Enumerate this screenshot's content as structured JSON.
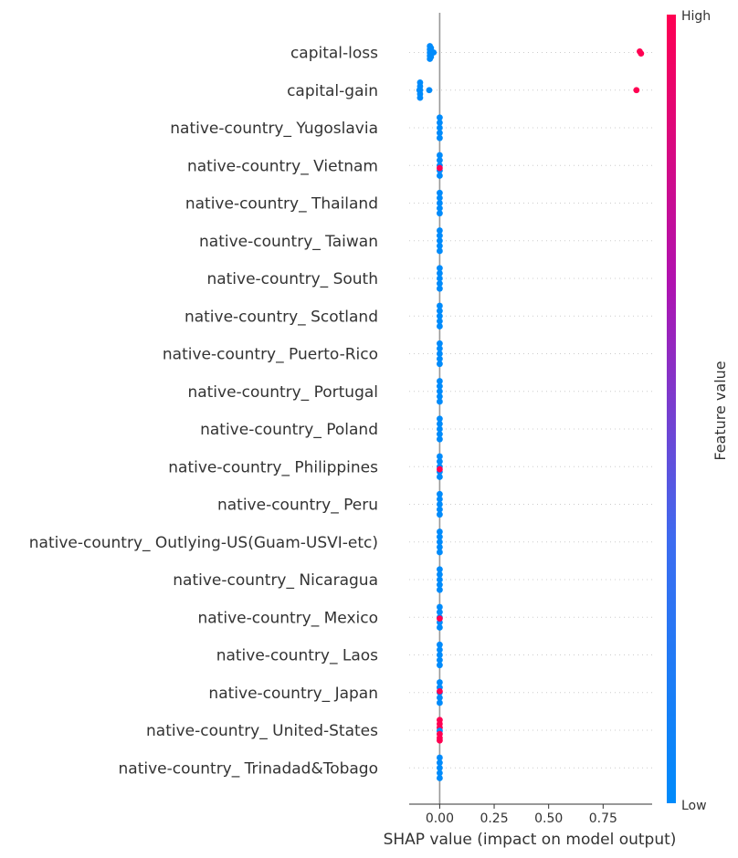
{
  "chart_data": {
    "type": "scatter",
    "subtype": "shap-beeswarm",
    "xlabel": "SHAP value (impact on model output)",
    "ylabel": "",
    "xlim": [
      -0.14,
      0.975
    ],
    "xticks": [
      0.0,
      0.25,
      0.5,
      0.75
    ],
    "xtick_labels": [
      "0.00",
      "0.25",
      "0.50",
      "0.75"
    ],
    "colorbar": {
      "label": "Feature value",
      "high_label": "High",
      "low_label": "Low",
      "low_color": "#008bfb",
      "high_color": "#ff0052"
    },
    "features": [
      {
        "name": "capital-loss",
        "points": [
          {
            "x": -0.045,
            "value": 0.0,
            "dy": -0.5
          },
          {
            "x": -0.045,
            "value": 0.0,
            "dy": -0.25
          },
          {
            "x": -0.045,
            "value": 0.0,
            "dy": 0.0
          },
          {
            "x": -0.045,
            "value": 0.0,
            "dy": 0.25
          },
          {
            "x": -0.045,
            "value": 0.0,
            "dy": 0.5
          },
          {
            "x": -0.04,
            "value": 0.0,
            "dy": -0.35
          },
          {
            "x": -0.04,
            "value": 0.0,
            "dy": 0.35
          },
          {
            "x": -0.028,
            "value": 0.0,
            "dy": 0.0
          },
          {
            "x": 0.918,
            "value": 1.0,
            "dy": -0.08
          },
          {
            "x": 0.924,
            "value": 1.0,
            "dy": 0.08
          }
        ]
      },
      {
        "name": "capital-gain",
        "points": [
          {
            "x": -0.09,
            "value": 0.0,
            "dy": -0.6
          },
          {
            "x": -0.09,
            "value": 0.0,
            "dy": -0.3
          },
          {
            "x": -0.09,
            "value": 0.0,
            "dy": 0.0
          },
          {
            "x": -0.09,
            "value": 0.0,
            "dy": 0.3
          },
          {
            "x": -0.09,
            "value": 0.0,
            "dy": 0.6
          },
          {
            "x": -0.093,
            "value": 0.0,
            "dy": 0.0
          },
          {
            "x": -0.048,
            "value": 0.0,
            "dy": 0.0
          },
          {
            "x": 0.903,
            "value": 1.0,
            "dy": 0.0
          }
        ]
      },
      {
        "name": "native-country_ Yugoslavia",
        "points": [
          {
            "x": 0.0,
            "value": 0.0,
            "dy": -0.8
          },
          {
            "x": 0.0,
            "value": 0.0,
            "dy": -0.4
          },
          {
            "x": 0.0,
            "value": 0.0,
            "dy": 0.0
          },
          {
            "x": 0.0,
            "value": 0.0,
            "dy": 0.4
          },
          {
            "x": 0.0,
            "value": 0.0,
            "dy": 0.8
          }
        ]
      },
      {
        "name": "native-country_ Vietnam",
        "points": [
          {
            "x": 0.0,
            "value": 0.0,
            "dy": -0.8
          },
          {
            "x": 0.0,
            "value": 0.0,
            "dy": -0.4
          },
          {
            "x": 0.0,
            "value": 0.0,
            "dy": 0.0
          },
          {
            "x": 0.0,
            "value": 0.0,
            "dy": 0.4
          },
          {
            "x": 0.0,
            "value": 0.0,
            "dy": 0.8
          },
          {
            "x": 0.0,
            "value": 1.0,
            "dy": 0.2
          }
        ]
      },
      {
        "name": "native-country_ Thailand",
        "points": [
          {
            "x": 0.0,
            "value": 0.0,
            "dy": -0.8
          },
          {
            "x": 0.0,
            "value": 0.0,
            "dy": -0.4
          },
          {
            "x": 0.0,
            "value": 0.0,
            "dy": 0.0
          },
          {
            "x": 0.0,
            "value": 0.0,
            "dy": 0.4
          },
          {
            "x": 0.0,
            "value": 0.0,
            "dy": 0.8
          }
        ]
      },
      {
        "name": "native-country_ Taiwan",
        "points": [
          {
            "x": 0.0,
            "value": 0.0,
            "dy": -0.8
          },
          {
            "x": 0.0,
            "value": 0.0,
            "dy": -0.4
          },
          {
            "x": 0.0,
            "value": 0.0,
            "dy": 0.0
          },
          {
            "x": 0.0,
            "value": 0.0,
            "dy": 0.4
          },
          {
            "x": 0.0,
            "value": 0.0,
            "dy": 0.8
          }
        ]
      },
      {
        "name": "native-country_ South",
        "points": [
          {
            "x": 0.0,
            "value": 0.0,
            "dy": -0.8
          },
          {
            "x": 0.0,
            "value": 0.0,
            "dy": -0.4
          },
          {
            "x": 0.0,
            "value": 0.0,
            "dy": 0.0
          },
          {
            "x": 0.0,
            "value": 0.0,
            "dy": 0.4
          },
          {
            "x": 0.0,
            "value": 0.0,
            "dy": 0.8
          }
        ]
      },
      {
        "name": "native-country_ Scotland",
        "points": [
          {
            "x": 0.0,
            "value": 0.0,
            "dy": -0.8
          },
          {
            "x": 0.0,
            "value": 0.0,
            "dy": -0.4
          },
          {
            "x": 0.0,
            "value": 0.0,
            "dy": 0.0
          },
          {
            "x": 0.0,
            "value": 0.0,
            "dy": 0.4
          },
          {
            "x": 0.0,
            "value": 0.0,
            "dy": 0.8
          }
        ]
      },
      {
        "name": "native-country_ Puerto-Rico",
        "points": [
          {
            "x": 0.0,
            "value": 0.0,
            "dy": -0.8
          },
          {
            "x": 0.0,
            "value": 0.0,
            "dy": -0.4
          },
          {
            "x": 0.0,
            "value": 0.0,
            "dy": 0.0
          },
          {
            "x": 0.0,
            "value": 0.0,
            "dy": 0.4
          },
          {
            "x": 0.0,
            "value": 0.0,
            "dy": 0.8
          }
        ]
      },
      {
        "name": "native-country_ Portugal",
        "points": [
          {
            "x": 0.0,
            "value": 0.0,
            "dy": -0.8
          },
          {
            "x": 0.0,
            "value": 0.0,
            "dy": -0.4
          },
          {
            "x": 0.0,
            "value": 0.0,
            "dy": 0.0
          },
          {
            "x": 0.0,
            "value": 0.0,
            "dy": 0.4
          },
          {
            "x": 0.0,
            "value": 0.0,
            "dy": 0.8
          }
        ]
      },
      {
        "name": "native-country_ Poland",
        "points": [
          {
            "x": 0.0,
            "value": 0.0,
            "dy": -0.8
          },
          {
            "x": 0.0,
            "value": 0.0,
            "dy": -0.4
          },
          {
            "x": 0.0,
            "value": 0.0,
            "dy": 0.0
          },
          {
            "x": 0.0,
            "value": 0.0,
            "dy": 0.4
          },
          {
            "x": 0.0,
            "value": 0.0,
            "dy": 0.8
          }
        ]
      },
      {
        "name": "native-country_ Philippines",
        "points": [
          {
            "x": 0.0,
            "value": 0.0,
            "dy": -0.8
          },
          {
            "x": 0.0,
            "value": 0.0,
            "dy": -0.4
          },
          {
            "x": 0.0,
            "value": 0.0,
            "dy": 0.0
          },
          {
            "x": 0.0,
            "value": 0.0,
            "dy": 0.4
          },
          {
            "x": 0.0,
            "value": 0.0,
            "dy": 0.8
          },
          {
            "x": 0.0,
            "value": 1.0,
            "dy": 0.2
          }
        ]
      },
      {
        "name": "native-country_ Peru",
        "points": [
          {
            "x": 0.0,
            "value": 0.0,
            "dy": -0.8
          },
          {
            "x": 0.0,
            "value": 0.0,
            "dy": -0.4
          },
          {
            "x": 0.0,
            "value": 0.0,
            "dy": 0.0
          },
          {
            "x": 0.0,
            "value": 0.0,
            "dy": 0.4
          },
          {
            "x": 0.0,
            "value": 0.0,
            "dy": 0.8
          }
        ]
      },
      {
        "name": "native-country_ Outlying-US(Guam-USVI-etc)",
        "points": [
          {
            "x": 0.0,
            "value": 0.0,
            "dy": -0.8
          },
          {
            "x": 0.0,
            "value": 0.0,
            "dy": -0.4
          },
          {
            "x": 0.0,
            "value": 0.0,
            "dy": 0.0
          },
          {
            "x": 0.0,
            "value": 0.0,
            "dy": 0.4
          },
          {
            "x": 0.0,
            "value": 0.0,
            "dy": 0.8
          }
        ]
      },
      {
        "name": "native-country_ Nicaragua",
        "points": [
          {
            "x": 0.0,
            "value": 0.0,
            "dy": -0.8
          },
          {
            "x": 0.0,
            "value": 0.0,
            "dy": -0.4
          },
          {
            "x": 0.0,
            "value": 0.0,
            "dy": 0.0
          },
          {
            "x": 0.0,
            "value": 0.0,
            "dy": 0.4
          },
          {
            "x": 0.0,
            "value": 0.0,
            "dy": 0.8
          }
        ]
      },
      {
        "name": "native-country_ Mexico",
        "points": [
          {
            "x": 0.0,
            "value": 0.0,
            "dy": -0.8
          },
          {
            "x": 0.0,
            "value": 0.0,
            "dy": -0.4
          },
          {
            "x": 0.0,
            "value": 0.0,
            "dy": 0.0
          },
          {
            "x": 0.0,
            "value": 0.0,
            "dy": 0.4
          },
          {
            "x": 0.0,
            "value": 0.0,
            "dy": 0.8
          },
          {
            "x": 0.0,
            "value": 1.0,
            "dy": 0.1
          }
        ]
      },
      {
        "name": "native-country_ Laos",
        "points": [
          {
            "x": 0.0,
            "value": 0.0,
            "dy": -0.8
          },
          {
            "x": 0.0,
            "value": 0.0,
            "dy": -0.4
          },
          {
            "x": 0.0,
            "value": 0.0,
            "dy": 0.0
          },
          {
            "x": 0.0,
            "value": 0.0,
            "dy": 0.4
          },
          {
            "x": 0.0,
            "value": 0.0,
            "dy": 0.8
          }
        ]
      },
      {
        "name": "native-country_ Japan",
        "points": [
          {
            "x": 0.0,
            "value": 0.0,
            "dy": -0.8
          },
          {
            "x": 0.0,
            "value": 0.0,
            "dy": -0.4
          },
          {
            "x": 0.0,
            "value": 0.0,
            "dy": 0.0
          },
          {
            "x": 0.0,
            "value": 0.0,
            "dy": 0.4
          },
          {
            "x": 0.0,
            "value": 0.0,
            "dy": 0.8
          },
          {
            "x": 0.0,
            "value": 1.0,
            "dy": -0.1
          }
        ]
      },
      {
        "name": "native-country_ United-States",
        "points": [
          {
            "x": 0.0,
            "value": 1.0,
            "dy": -0.8
          },
          {
            "x": 0.0,
            "value": 1.0,
            "dy": -0.5
          },
          {
            "x": 0.0,
            "value": 1.0,
            "dy": -0.2
          },
          {
            "x": 0.0,
            "value": 0.0,
            "dy": 0.05
          },
          {
            "x": 0.0,
            "value": 1.0,
            "dy": 0.3
          },
          {
            "x": 0.0,
            "value": 1.0,
            "dy": 0.6
          },
          {
            "x": 0.0,
            "value": 1.0,
            "dy": 0.8
          }
        ]
      },
      {
        "name": "native-country_ Trinadad&Tobago",
        "points": [
          {
            "x": 0.0,
            "value": 0.0,
            "dy": -0.8
          },
          {
            "x": 0.0,
            "value": 0.0,
            "dy": -0.4
          },
          {
            "x": 0.0,
            "value": 0.0,
            "dy": 0.0
          },
          {
            "x": 0.0,
            "value": 0.0,
            "dy": 0.4
          },
          {
            "x": 0.0,
            "value": 0.0,
            "dy": 0.8
          }
        ]
      }
    ]
  }
}
